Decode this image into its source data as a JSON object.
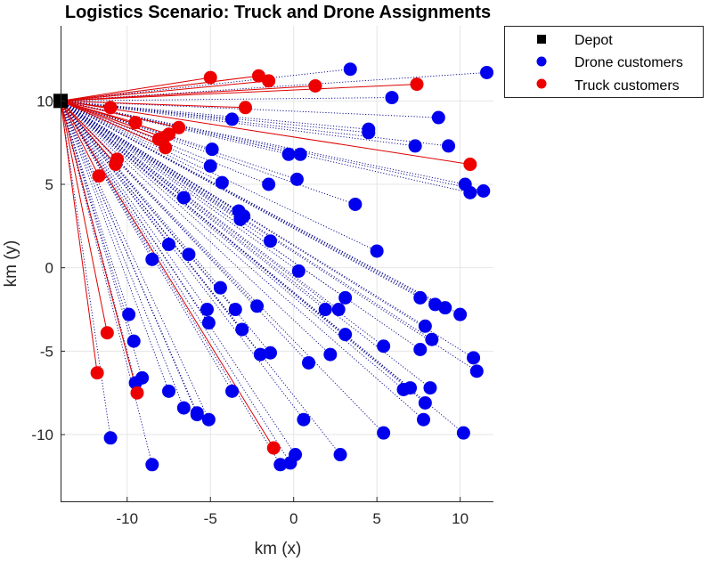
{
  "chart_data": {
    "type": "scatter",
    "title": "Logistics Scenario: Truck and Drone Assignments",
    "xlabel": "km (x)",
    "ylabel": "km (y)",
    "xlim": [
      -14,
      12
    ],
    "ylim": [
      -14,
      14.5
    ],
    "x_ticks": [
      -10,
      -5,
      0,
      5,
      10
    ],
    "y_ticks": [
      -10,
      -5,
      0,
      5,
      10
    ],
    "grid": true,
    "legend_position": "top-right-outside",
    "depot": {
      "x": -14,
      "y": 10
    },
    "colors": {
      "depot": "#000000",
      "drone": "#0000ee",
      "drone_line": "#00008b",
      "truck": "#ee0000",
      "truck_line": "#dd0000",
      "axis": "#262626",
      "grid": "#e6e6e6"
    },
    "legend": [
      {
        "label": "Depot",
        "marker": "square",
        "color": "#000000"
      },
      {
        "label": "Drone customers",
        "marker": "circle",
        "color": "#0000ee"
      },
      {
        "label": "Truck customers",
        "marker": "circle",
        "color": "#ee0000"
      }
    ],
    "series": [
      {
        "name": "Drone customers",
        "points": [
          [
            3.4,
            11.9
          ],
          [
            11.6,
            11.7
          ],
          [
            5.9,
            10.2
          ],
          [
            8.7,
            9.0
          ],
          [
            -3.7,
            8.9
          ],
          [
            4.5,
            8.3
          ],
          [
            4.5,
            8.1
          ],
          [
            7.3,
            7.3
          ],
          [
            9.3,
            7.3
          ],
          [
            -4.9,
            7.1
          ],
          [
            -0.3,
            6.8
          ],
          [
            0.4,
            6.8
          ],
          [
            -5.0,
            6.1
          ],
          [
            -4.3,
            5.1
          ],
          [
            -1.5,
            5.0
          ],
          [
            0.2,
            5.3
          ],
          [
            10.3,
            5.0
          ],
          [
            10.6,
            4.5
          ],
          [
            11.4,
            4.6
          ],
          [
            -6.6,
            4.2
          ],
          [
            3.7,
            3.8
          ],
          [
            -3.3,
            3.4
          ],
          [
            -3.0,
            3.1
          ],
          [
            -3.2,
            2.9
          ],
          [
            -1.4,
            1.6
          ],
          [
            5.0,
            1.0
          ],
          [
            -7.5,
            1.4
          ],
          [
            -6.3,
            0.8
          ],
          [
            -8.5,
            0.5
          ],
          [
            0.3,
            -0.2
          ],
          [
            -4.4,
            -1.2
          ],
          [
            3.1,
            -1.8
          ],
          [
            7.6,
            -1.8
          ],
          [
            8.5,
            -2.2
          ],
          [
            9.1,
            -2.4
          ],
          [
            10.0,
            -2.8
          ],
          [
            -2.2,
            -2.3
          ],
          [
            -3.5,
            -2.5
          ],
          [
            1.9,
            -2.5
          ],
          [
            2.7,
            -2.5
          ],
          [
            -5.2,
            -2.5
          ],
          [
            -9.9,
            -2.8
          ],
          [
            -5.1,
            -3.3
          ],
          [
            7.9,
            -3.5
          ],
          [
            -3.1,
            -3.7
          ],
          [
            3.1,
            -4.0
          ],
          [
            8.3,
            -4.3
          ],
          [
            -9.6,
            -4.4
          ],
          [
            5.4,
            -4.7
          ],
          [
            7.6,
            -4.9
          ],
          [
            -2.0,
            -5.2
          ],
          [
            -1.4,
            -5.1
          ],
          [
            2.2,
            -5.2
          ],
          [
            10.8,
            -5.4
          ],
          [
            0.9,
            -5.7
          ],
          [
            11.0,
            -6.2
          ],
          [
            -9.1,
            -6.6
          ],
          [
            -9.5,
            -6.9
          ],
          [
            6.6,
            -7.3
          ],
          [
            7.0,
            -7.2
          ],
          [
            8.2,
            -7.2
          ],
          [
            -7.5,
            -7.4
          ],
          [
            -3.7,
            -7.4
          ],
          [
            7.9,
            -8.1
          ],
          [
            -6.6,
            -8.4
          ],
          [
            -5.8,
            -8.7
          ],
          [
            -5.8,
            -8.8
          ],
          [
            -5.1,
            -9.1
          ],
          [
            0.6,
            -9.1
          ],
          [
            7.8,
            -9.1
          ],
          [
            5.4,
            -9.9
          ],
          [
            10.2,
            -9.9
          ],
          [
            -11.0,
            -10.2
          ],
          [
            0.1,
            -11.2
          ],
          [
            2.8,
            -11.2
          ],
          [
            -8.5,
            -11.8
          ],
          [
            -0.8,
            -11.8
          ],
          [
            -0.2,
            -11.7
          ]
        ]
      },
      {
        "name": "Truck customers",
        "points": [
          [
            -5.0,
            11.4
          ],
          [
            -2.1,
            11.5
          ],
          [
            -1.5,
            11.2
          ],
          [
            1.3,
            10.9
          ],
          [
            7.4,
            11.0
          ],
          [
            -11.0,
            9.6
          ],
          [
            -2.9,
            9.6
          ],
          [
            -9.5,
            8.7
          ],
          [
            -6.9,
            8.4
          ],
          [
            -7.5,
            8.0
          ],
          [
            -7.8,
            7.8
          ],
          [
            -8.1,
            7.7
          ],
          [
            -7.7,
            7.2
          ],
          [
            -10.6,
            6.5
          ],
          [
            -10.7,
            6.2
          ],
          [
            -11.7,
            5.5
          ],
          [
            10.6,
            6.2
          ],
          [
            -11.2,
            -3.9
          ],
          [
            -11.8,
            -6.3
          ],
          [
            -9.4,
            -7.5
          ],
          [
            -1.2,
            -10.8
          ]
        ]
      }
    ]
  }
}
